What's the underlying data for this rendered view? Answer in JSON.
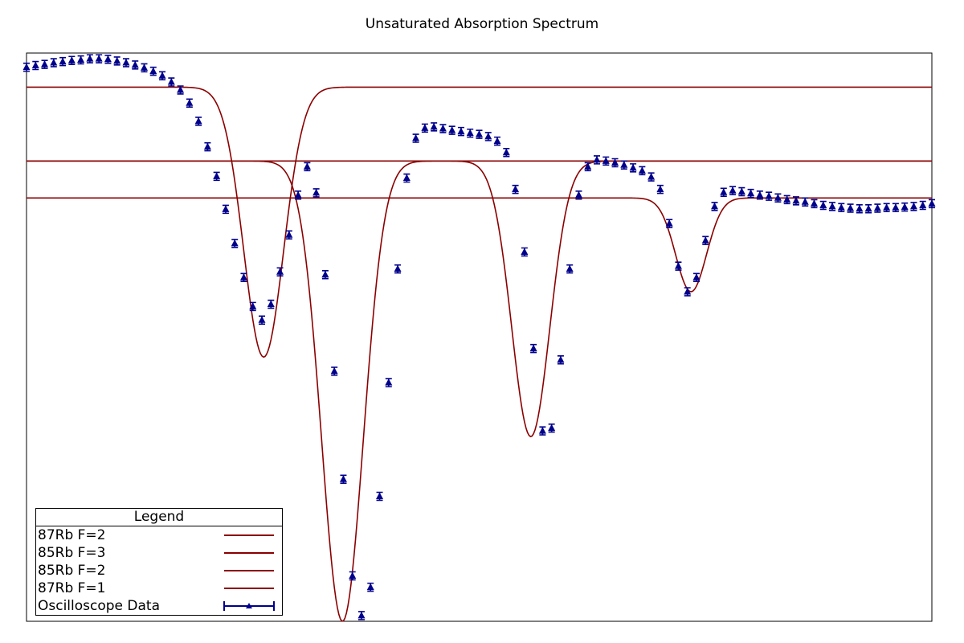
{
  "chart_data": {
    "type": "line",
    "title": "Unsaturated Absorption Spectrum",
    "xlabel": "",
    "ylabel": "",
    "xlim": [
      0,
      100
    ],
    "ylim": [
      0,
      100
    ],
    "grid": false,
    "legend_position": "bottom-left",
    "legend_title": "Legend",
    "colors": {
      "fit": "#8b0000",
      "data": "#00008b"
    },
    "series": [
      {
        "name": "87Rb F=2",
        "kind": "fit",
        "baseline": 94,
        "dips": [
          {
            "center": 26.2,
            "depth": 47.5,
            "width": 2.2
          }
        ]
      },
      {
        "name": "85Rb F=3",
        "kind": "fit",
        "baseline": 81,
        "dips": [
          {
            "center": 34.9,
            "depth": 81.0,
            "width": 2.3
          }
        ]
      },
      {
        "name": "85Rb F=2",
        "kind": "fit",
        "baseline": 81,
        "dips": [
          {
            "center": 55.7,
            "depth": 48.5,
            "width": 2.1
          }
        ]
      },
      {
        "name": "87Rb F=1",
        "kind": "fit",
        "baseline": 74.5,
        "dips": [
          {
            "center": 73.4,
            "depth": 16.5,
            "width": 1.7
          }
        ]
      },
      {
        "name": "Oscilloscope Data",
        "kind": "data",
        "x": [
          0,
          1,
          2,
          3,
          4,
          5,
          6,
          7,
          8,
          9,
          10,
          11,
          12,
          13,
          14,
          15,
          16,
          17,
          18,
          19,
          20,
          21,
          22,
          23,
          24,
          25,
          26,
          27,
          28,
          29,
          30,
          31,
          32,
          33,
          34,
          35,
          36,
          37,
          38,
          39,
          40,
          41,
          42,
          43,
          44,
          45,
          46,
          47,
          48,
          49,
          50,
          51,
          52,
          53,
          54,
          55,
          56,
          57,
          58,
          59,
          60,
          61,
          62,
          63,
          64,
          65,
          66,
          67,
          68,
          69,
          70,
          71,
          72,
          73,
          74,
          75,
          76,
          77,
          78,
          79,
          80,
          81,
          82,
          83,
          84,
          85,
          86,
          87,
          88,
          89,
          90,
          91,
          92,
          93,
          94,
          95,
          96,
          97,
          98,
          99,
          100
        ],
        "y": [
          97.5,
          97.8,
          98.0,
          98.3,
          98.5,
          98.7,
          98.8,
          99.0,
          99.0,
          98.9,
          98.6,
          98.3,
          97.9,
          97.4,
          96.8,
          96.0,
          94.9,
          93.5,
          91.2,
          88.0,
          83.5,
          78.3,
          72.5,
          66.5,
          60.5,
          55.4,
          53.0,
          55.8,
          61.5,
          68.0,
          75.0,
          80.0,
          75.4,
          61.0,
          44.0,
          25.0,
          8.0,
          1.0,
          6.0,
          22.0,
          42.0,
          62.0,
          78.0,
          85.0,
          86.8,
          87.0,
          86.7,
          86.4,
          86.2,
          85.9,
          85.7,
          85.3,
          84.5,
          82.5,
          76.0,
          65.0,
          48.0,
          33.5,
          34.0,
          46.0,
          62.0,
          75.0,
          80.0,
          81.2,
          81.0,
          80.7,
          80.3,
          79.8,
          79.3,
          78.2,
          76.0,
          70.0,
          62.5,
          58.0,
          60.5,
          67.0,
          73.0,
          75.5,
          75.8,
          75.6,
          75.3,
          75.0,
          74.8,
          74.5,
          74.2,
          74.0,
          73.8,
          73.5,
          73.2,
          73.0,
          72.8,
          72.7,
          72.6,
          72.6,
          72.7,
          72.8,
          72.8,
          72.9,
          73.0,
          73.2,
          73.5
        ],
        "error": 0.7
      }
    ]
  }
}
